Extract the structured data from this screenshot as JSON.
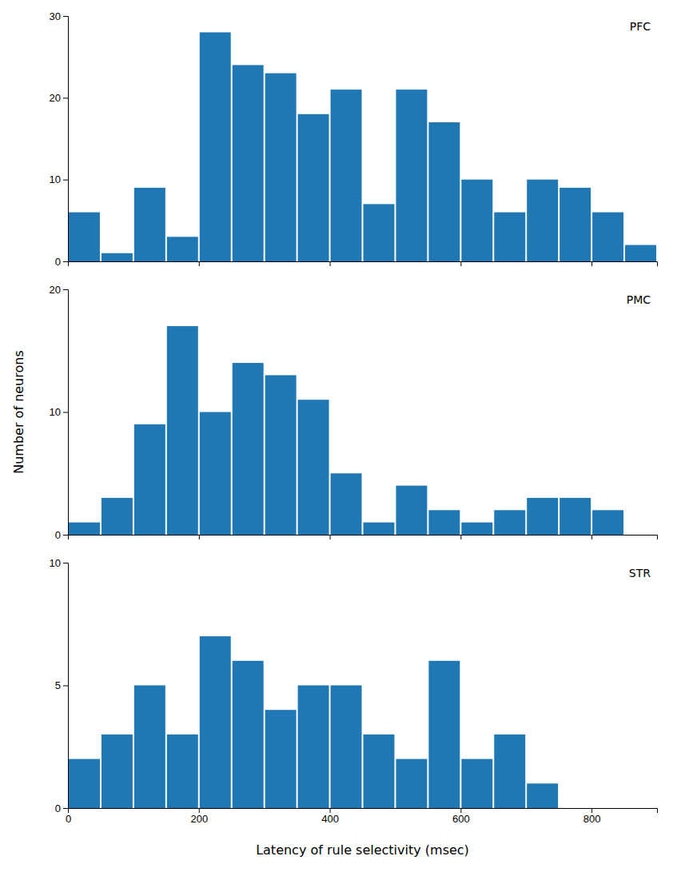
{
  "chart_data": [
    {
      "type": "histogram",
      "title": "PFC",
      "bins": [
        0,
        50,
        100,
        150,
        200,
        250,
        300,
        350,
        400,
        450,
        500,
        550,
        600,
        650,
        700,
        750,
        800,
        850,
        900
      ],
      "values": [
        6,
        1,
        9,
        3,
        28,
        24,
        23,
        18,
        21,
        7,
        21,
        17,
        10,
        6,
        10,
        9,
        6,
        2
      ],
      "xlim": [
        0,
        900
      ],
      "xticks": [
        0,
        200,
        400,
        600,
        800
      ],
      "ylim": [
        0,
        30
      ],
      "yticks": [
        0,
        10,
        20,
        30
      ],
      "tick_labels": "y"
    },
    {
      "type": "histogram",
      "title": "PMC",
      "ylabel": "Number of neurons",
      "bins": [
        0,
        50,
        100,
        150,
        200,
        250,
        300,
        350,
        400,
        450,
        500,
        550,
        600,
        650,
        700,
        750,
        800,
        850,
        900
      ],
      "values": [
        1,
        3,
        9,
        17,
        10,
        14,
        13,
        11,
        5,
        1,
        4,
        2,
        1,
        2,
        3,
        3,
        2,
        0
      ],
      "xlim": [
        0,
        900
      ],
      "xticks": [
        0,
        200,
        400,
        600,
        800
      ],
      "ylim": [
        0,
        20
      ],
      "yticks": [
        0,
        10,
        20
      ],
      "tick_labels": "y"
    },
    {
      "type": "histogram",
      "title": "STR",
      "xlabel": "Latency of rule selectivity (msec)",
      "bins": [
        0,
        50,
        100,
        150,
        200,
        250,
        300,
        350,
        400,
        450,
        500,
        550,
        600,
        650,
        700,
        750,
        800,
        850,
        900
      ],
      "values": [
        2,
        3,
        5,
        3,
        7,
        6,
        4,
        5,
        5,
        3,
        2,
        6,
        2,
        3,
        1,
        0,
        0,
        0
      ],
      "xlim": [
        0,
        900
      ],
      "xticks": [
        0,
        200,
        400,
        600,
        800
      ],
      "ylim": [
        0,
        10
      ],
      "yticks": [
        0,
        5,
        10
      ]
    }
  ]
}
